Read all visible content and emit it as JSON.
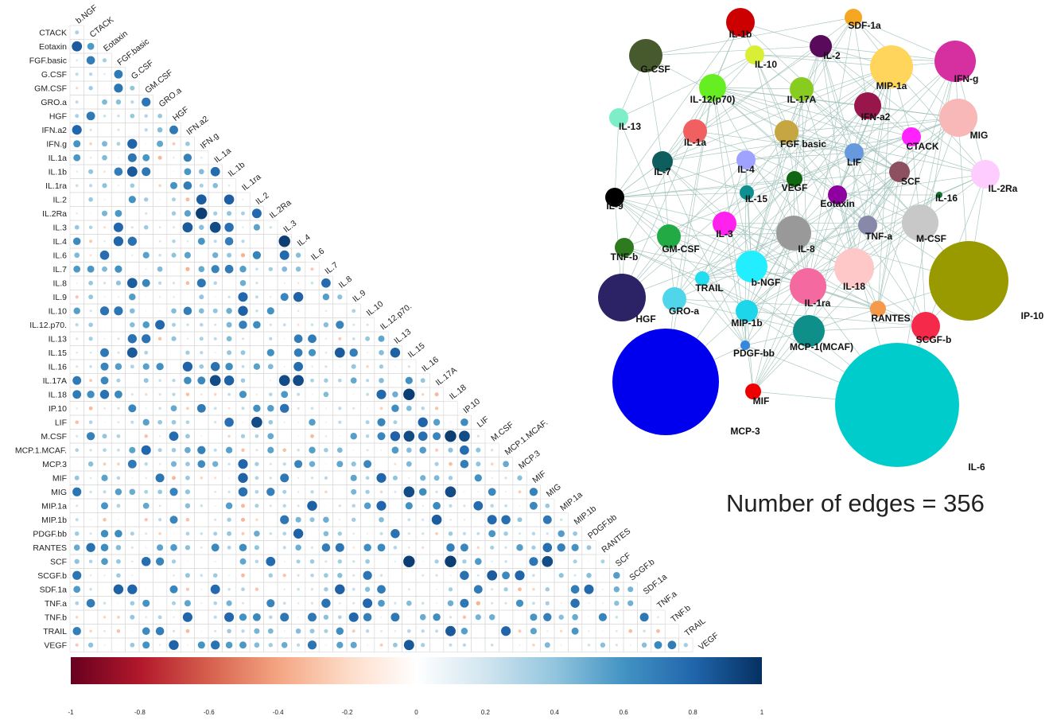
{
  "chart_data": [
    {
      "type": "heatmap",
      "variables": [
        "b.NGF",
        "CTACK",
        "Eotaxin",
        "FGF.basic",
        "G.CSF",
        "GM.CSF",
        "GRO.a",
        "HGF",
        "IFN.a2",
        "IFN.g",
        "IL.1a",
        "IL.1b",
        "IL.1ra",
        "IL.2",
        "IL.2Ra",
        "IL.3",
        "IL.4",
        "IL.6",
        "IL.7",
        "IL.8",
        "IL.9",
        "IL.10",
        "IL.12.p70.",
        "IL.13",
        "IL.15",
        "IL.16",
        "IL.17A",
        "IL.18",
        "IP.10",
        "LIF",
        "M.CSF",
        "MCP.1.MCAF.",
        "MCP.3",
        "MIF",
        "MIG",
        "MIP.1a",
        "MIP.1b",
        "PDGF.bb",
        "RANTES",
        "SCF",
        "SCGF.b",
        "SDF.1a",
        "TNF.a",
        "TNF.b",
        "TRAIL",
        "VEGF"
      ],
      "colorbar": {
        "ticks": [
          "-1",
          "-0.8",
          "-0.6",
          "-0.4",
          "-0.2",
          "0",
          "0.2",
          "0.4",
          "0.6",
          "0.8",
          "1"
        ],
        "range": [
          -1,
          1
        ],
        "colors": [
          "#67001f",
          "#b2182b",
          "#d6604d",
          "#f4a582",
          "#fddbc7",
          "#ffffff",
          "#d1e5f0",
          "#92c5de",
          "#4393c3",
          "#2166ac",
          "#053061"
        ]
      },
      "cell_border_color": "#d9d9d9",
      "strong_correlations": [
        {
          "row": "IL.2Ra",
          "col": "IFN.g",
          "value": 0.95
        },
        {
          "row": "IL.4",
          "col": "IL.3",
          "value": 0.95
        },
        {
          "row": "IL.3",
          "col": "IL.1a",
          "value": 0.9
        },
        {
          "row": "IL.17A",
          "col": "IL.1a",
          "value": 0.9
        },
        {
          "row": "IL.17A",
          "col": "IL.3",
          "value": 0.9
        },
        {
          "row": "IL.17A",
          "col": "IL.4",
          "value": 0.9
        },
        {
          "row": "IL.18",
          "col": "IL.15",
          "value": 0.95
        },
        {
          "row": "LIF",
          "col": "IL.2",
          "value": 0.9
        },
        {
          "row": "M.CSF",
          "col": "IL.15",
          "value": 0.9
        },
        {
          "row": "M.CSF",
          "col": "IL.18",
          "value": 0.95
        },
        {
          "row": "M.CSF",
          "col": "IP.10",
          "value": 0.9
        },
        {
          "row": "MCP.3",
          "col": "IL.1ra",
          "value": 0.8
        },
        {
          "row": "MIG",
          "col": "IL.15",
          "value": 0.9
        },
        {
          "row": "MIG",
          "col": "IL.18",
          "value": 0.9
        },
        {
          "row": "SCF",
          "col": "IL.15",
          "value": 0.95
        },
        {
          "row": "SCF",
          "col": "IL.18",
          "value": 0.95
        },
        {
          "row": "SCF",
          "col": "MIG",
          "value": 0.9
        },
        {
          "row": "VEGF",
          "col": "IL.15",
          "value": 0.85
        }
      ]
    },
    {
      "type": "network",
      "edges_label": "Number of edges = 356",
      "edge_color": "#9dbfb7",
      "nodes": [
        {
          "label": "IL-1b",
          "color": "#cc0000",
          "size": 18
        },
        {
          "label": "SDF-1a",
          "color": "#f5a623",
          "size": 11
        },
        {
          "label": "IL-2",
          "color": "#5a0a5a",
          "size": 14
        },
        {
          "label": "IL-10",
          "color": "#d9ef35",
          "size": 12
        },
        {
          "label": "G-CSF",
          "color": "#465a2e",
          "size": 21
        },
        {
          "label": "MIP-1a",
          "color": "#ffd55c",
          "size": 27
        },
        {
          "label": "IFN-g",
          "color": "#d62fa0",
          "size": 26
        },
        {
          "label": "IL-12(p70)",
          "color": "#66ee22",
          "size": 17
        },
        {
          "label": "IL-17A",
          "color": "#88cc22",
          "size": 15
        },
        {
          "label": "IFN-a2",
          "color": "#99164c",
          "size": 17
        },
        {
          "label": "IL-13",
          "color": "#7deec8",
          "size": 12
        },
        {
          "label": "MIG",
          "color": "#f9b8b8",
          "size": 24
        },
        {
          "label": "IL-1a",
          "color": "#f06060",
          "size": 15
        },
        {
          "label": "FGF basic",
          "color": "#c6a640",
          "size": 15
        },
        {
          "label": "CTACK",
          "color": "#ff22ff",
          "size": 12
        },
        {
          "label": "LIF",
          "color": "#6699dd",
          "size": 12
        },
        {
          "label": "SCF",
          "color": "#8c5060",
          "size": 13
        },
        {
          "label": "IL-7",
          "color": "#0f5e5e",
          "size": 13
        },
        {
          "label": "IL-4",
          "color": "#a0a2ff",
          "size": 12
        },
        {
          "label": "VEGF",
          "color": "#116611",
          "size": 10
        },
        {
          "label": "IL-2Ra",
          "color": "#ffccff",
          "size": 18
        },
        {
          "label": "IL-9",
          "color": "#000000",
          "size": 12
        },
        {
          "label": "IL-15",
          "color": "#0f9090",
          "size": 9
        },
        {
          "label": "Eotaxin",
          "color": "#8f00a0",
          "size": 12
        },
        {
          "label": "IL-16",
          "color": "#0a7a2a",
          "size": 4
        },
        {
          "label": "IL-3",
          "color": "#ff22ee",
          "size": 15
        },
        {
          "label": "TNF-a",
          "color": "#8888aa",
          "size": 12
        },
        {
          "label": "M-CSF",
          "color": "#c8c8c8",
          "size": 23
        },
        {
          "label": "GM-CSF",
          "color": "#22aa44",
          "size": 15
        },
        {
          "label": "IL-8",
          "color": "#999999",
          "size": 22
        },
        {
          "label": "TNF-b",
          "color": "#2e7a1e",
          "size": 12
        },
        {
          "label": "b-NGF",
          "color": "#22eeff",
          "size": 20
        },
        {
          "label": "IL-18",
          "color": "#ffc8c8",
          "size": 25
        },
        {
          "label": "IP-10",
          "color": "#999900",
          "size": 50
        },
        {
          "label": "TRAIL",
          "color": "#22ddee",
          "size": 9
        },
        {
          "label": "IL-1ra",
          "color": "#f46aa0",
          "size": 23
        },
        {
          "label": "HGF",
          "color": "#2c2266",
          "size": 30
        },
        {
          "label": "GRO-a",
          "color": "#4fd6ea",
          "size": 15
        },
        {
          "label": "MIP-1b",
          "color": "#1ed6ea",
          "size": 14
        },
        {
          "label": "RANTES",
          "color": "#f59a4a",
          "size": 10
        },
        {
          "label": "SCGF-b",
          "color": "#f52a4a",
          "size": 18
        },
        {
          "label": "MCP-1(MCAF)",
          "color": "#0f8f8a",
          "size": 20
        },
        {
          "label": "PDGF-bb",
          "color": "#3388dd",
          "size": 6
        },
        {
          "label": "MCP-3",
          "color": "#0000ee",
          "size": 67
        },
        {
          "label": "MIF",
          "color": "#ee0000",
          "size": 10
        },
        {
          "label": "IL-6",
          "color": "#00cccc",
          "size": 78
        }
      ]
    }
  ]
}
